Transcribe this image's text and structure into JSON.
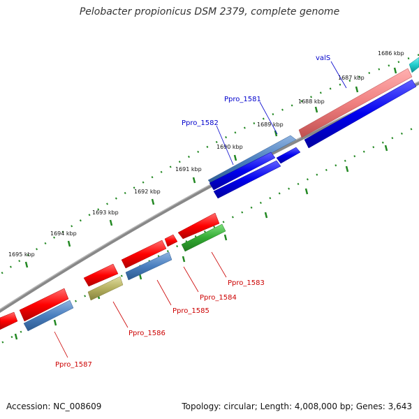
{
  "title": "Pelobacter propionicus DSM 2379, complete genome",
  "accession": "Accession: NC_008609",
  "summary": "Topology: circular; Length: 4,008,000 bp; Genes: 3,643",
  "kbp_labels": [
    "1686 kbp",
    "1687 kbp",
    "1688 kbp",
    "1689 kbp",
    "1690 kbp",
    "1691 kbp",
    "1692 kbp",
    "1693 kbp",
    "1694 kbp",
    "1695 kbp"
  ],
  "gene_labels": {
    "valS": "valS",
    "ppro_1581": "Ppro_1581",
    "ppro_1582": "Ppro_1582",
    "ppro_1583": "Ppro_1583",
    "ppro_1584": "Ppro_1584",
    "ppro_1585": "Ppro_1585",
    "ppro_1586": "Ppro_1586",
    "ppro_1587": "Ppro_1587"
  },
  "colors": {
    "forward_label": "#0000cc",
    "reverse_label": "#cc0000",
    "cds_forward": "#0000ee",
    "cds_reverse": "#ff0000",
    "gene_steel": "#4a7fbf",
    "gene_pink": "#f08080",
    "gene_green": "#33aa33",
    "gene_khaki": "#b5b060",
    "gene_cyan": "#22cccc",
    "backbone": "#888888",
    "ticks": "#228822"
  }
}
